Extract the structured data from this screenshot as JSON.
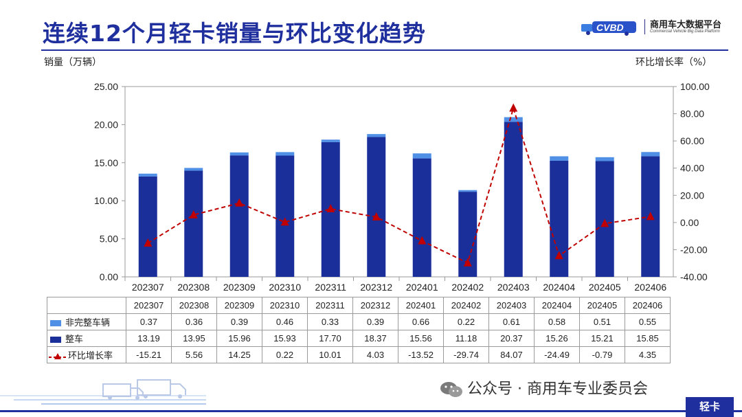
{
  "title": "连续12个月轻卡销量与环比变化趋势",
  "logo": {
    "name": "商用车大数据平台",
    "sub": "Commercial Vehicle Big Data Platform"
  },
  "left_axis_title": "销量（万辆）",
  "right_axis_title": "环比增长率（%）",
  "footer": {
    "wechat": "公众号 · 商用车专业委员会",
    "tab": "轻卡"
  },
  "colors": {
    "complete": "#1b2f9b",
    "incomplete": "#4f8fe6",
    "growth": "#c00000",
    "title": "#1f2f9e"
  },
  "chart_data": {
    "type": "bar",
    "stacked": true,
    "categories": [
      "202307",
      "202308",
      "202309",
      "202310",
      "202311",
      "202312",
      "202401",
      "202402",
      "202403",
      "202404",
      "202405",
      "202406"
    ],
    "series": [
      {
        "name": "整车",
        "axis": "left",
        "values": [
          13.19,
          13.95,
          15.96,
          15.93,
          17.7,
          18.37,
          15.56,
          11.18,
          20.37,
          15.26,
          15.21,
          15.85
        ]
      },
      {
        "name": "非完整车辆",
        "axis": "left",
        "values": [
          0.37,
          0.36,
          0.39,
          0.46,
          0.33,
          0.39,
          0.66,
          0.22,
          0.61,
          0.58,
          0.51,
          0.55
        ]
      },
      {
        "name": "环比增长率",
        "axis": "right",
        "type": "line",
        "values": [
          -15.21,
          5.56,
          14.25,
          0.22,
          10.01,
          4.03,
          -13.52,
          -29.74,
          84.07,
          -24.49,
          -0.79,
          4.35
        ]
      }
    ],
    "table_rows": [
      {
        "label": "非完整车辆",
        "values": [
          "0.37",
          "0.36",
          "0.39",
          "0.46",
          "0.33",
          "0.39",
          "0.66",
          "0.22",
          "0.61",
          "0.58",
          "0.51",
          "0.55"
        ]
      },
      {
        "label": "整车",
        "values": [
          "13.19",
          "13.95",
          "15.96",
          "15.93",
          "17.70",
          "18.37",
          "15.56",
          "11.18",
          "20.37",
          "15.26",
          "15.21",
          "15.85"
        ]
      },
      {
        "label": "环比增长率",
        "values": [
          "-15.21",
          "5.56",
          "14.25",
          "0.22",
          "10.01",
          "4.03",
          "-13.52",
          "-29.74",
          "84.07",
          "-24.49",
          "-0.79",
          "4.35"
        ]
      }
    ],
    "ylim": [
      0,
      25
    ],
    "yticks": [
      "0.00",
      "5.00",
      "10.00",
      "15.00",
      "20.00",
      "25.00"
    ],
    "y2lim": [
      -40,
      100
    ],
    "y2ticks": [
      "-40.00",
      "-20.00",
      "0.00",
      "20.00",
      "40.00",
      "60.00",
      "80.00",
      "100.00"
    ],
    "ylabel": "销量（万辆）",
    "y2label": "环比增长率（%）",
    "grid": false,
    "legend": "table"
  }
}
